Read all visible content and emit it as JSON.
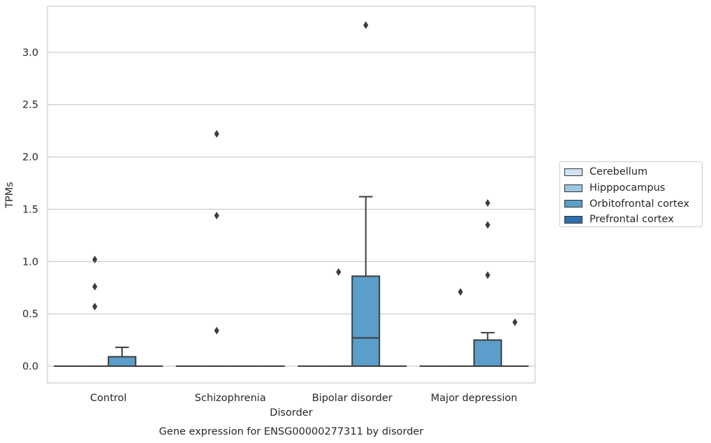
{
  "chart_data": {
    "type": "box",
    "title": "Gene expression for ENSG00000277311 by disorder",
    "xlabel": "Disorder",
    "ylabel": "TPMs",
    "categories": [
      "Control",
      "Schizophrenia",
      "Bipolar disorder",
      "Major depression"
    ],
    "ylim": [
      -0.16,
      3.44
    ],
    "yticks": [
      "0.0",
      "0.5",
      "1.0",
      "1.5",
      "2.0",
      "2.5",
      "3.0"
    ],
    "grid": "horizontal",
    "legend_position": "right",
    "series": [
      {
        "name": "Cerebellum",
        "color": "#d1e2f2",
        "boxes": [
          {
            "category": "Control",
            "min": 0,
            "q1": 0,
            "median": 0,
            "q3": 0,
            "max": 0,
            "outliers": []
          },
          {
            "category": "Schizophrenia",
            "min": 0,
            "q1": 0,
            "median": 0,
            "q3": 0,
            "max": 0,
            "outliers": []
          },
          {
            "category": "Bipolar disorder",
            "min": 0,
            "q1": 0,
            "median": 0,
            "q3": 0,
            "max": 0,
            "outliers": []
          },
          {
            "category": "Major depression",
            "min": 0,
            "q1": 0,
            "median": 0,
            "q3": 0,
            "max": 0,
            "outliers": []
          }
        ]
      },
      {
        "name": "Hipppocampus",
        "color": "#9ac8e0",
        "boxes": [
          {
            "category": "Control",
            "min": 0,
            "q1": 0,
            "median": 0,
            "q3": 0,
            "max": 0,
            "outliers": [
              0.57,
              0.76,
              1.02
            ]
          },
          {
            "category": "Schizophrenia",
            "min": 0,
            "q1": 0,
            "median": 0,
            "q3": 0,
            "max": 0,
            "outliers": [
              0.34,
              1.44,
              2.22
            ]
          },
          {
            "category": "Bipolar disorder",
            "min": 0,
            "q1": 0,
            "median": 0,
            "q3": 0,
            "max": 0,
            "outliers": [
              0.9
            ]
          },
          {
            "category": "Major depression",
            "min": 0,
            "q1": 0,
            "median": 0,
            "q3": 0,
            "max": 0,
            "outliers": [
              0.71
            ]
          }
        ]
      },
      {
        "name": "Orbitofrontal cortex",
        "color": "#5a9ec9",
        "boxes": [
          {
            "category": "Control",
            "min": 0,
            "q1": 0,
            "median": 0,
            "q3": 0.09,
            "max": 0.18,
            "outliers": []
          },
          {
            "category": "Schizophrenia",
            "min": 0,
            "q1": 0,
            "median": 0,
            "q3": 0,
            "max": 0,
            "outliers": []
          },
          {
            "category": "Bipolar disorder",
            "min": 0,
            "q1": 0,
            "median": 0.27,
            "q3": 0.86,
            "max": 1.62,
            "outliers": [
              3.26
            ]
          },
          {
            "category": "Major depression",
            "min": 0,
            "q1": 0,
            "median": 0,
            "q3": 0.25,
            "max": 0.32,
            "outliers": [
              0.87,
              1.35,
              1.56
            ]
          }
        ]
      },
      {
        "name": "Prefrontal cortex",
        "color": "#2e6fad",
        "boxes": [
          {
            "category": "Control",
            "min": 0,
            "q1": 0,
            "median": 0,
            "q3": 0,
            "max": 0,
            "outliers": []
          },
          {
            "category": "Schizophrenia",
            "min": 0,
            "q1": 0,
            "median": 0,
            "q3": 0,
            "max": 0,
            "outliers": []
          },
          {
            "category": "Bipolar disorder",
            "min": 0,
            "q1": 0,
            "median": 0,
            "q3": 0,
            "max": 0,
            "outliers": []
          },
          {
            "category": "Major depression",
            "min": 0,
            "q1": 0,
            "median": 0,
            "q3": 0,
            "max": 0,
            "outliers": [
              0.42
            ]
          }
        ]
      }
    ]
  }
}
